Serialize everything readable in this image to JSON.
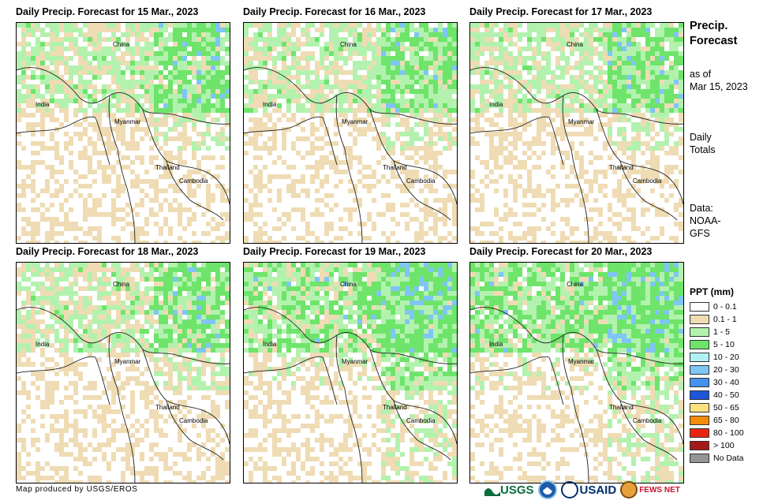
{
  "panels": [
    {
      "title": "Daily Precip. Forecast for 15 Mar., 2023"
    },
    {
      "title": "Daily Precip. Forecast for 16 Mar., 2023"
    },
    {
      "title": "Daily Precip. Forecast for 17 Mar., 2023"
    },
    {
      "title": "Daily Precip. Forecast for 18 Mar., 2023"
    },
    {
      "title": "Daily Precip. Forecast for 19 Mar., 2023"
    },
    {
      "title": "Daily Precip. Forecast for 20 Mar., 2023"
    }
  ],
  "map_labels": {
    "china": "China",
    "india": "India",
    "myanmar": "Myanmar",
    "thailand": "Thailand",
    "cambodia": "Cambodia"
  },
  "sidebar": {
    "title_line1": "Precip.",
    "title_line2": "Forecast",
    "asof_line1": "as of",
    "asof_line2": "Mar 15, 2023",
    "totals_line1": "Daily",
    "totals_line2": "Totals",
    "data_line1": "Data:",
    "data_line2": "NOAA-",
    "data_line3": "GFS"
  },
  "legend": {
    "title": "PPT (mm)",
    "items": [
      {
        "label": "0 - 0.1",
        "color": "#ffffff"
      },
      {
        "label": "0.1 - 1",
        "color": "#efdcb4"
      },
      {
        "label": "1 - 5",
        "color": "#b3f2ae"
      },
      {
        "label": "5 - 10",
        "color": "#6ee46b"
      },
      {
        "label": "10 - 20",
        "color": "#b2f0f8"
      },
      {
        "label": "20 - 30",
        "color": "#7fc5f5"
      },
      {
        "label": "30 - 40",
        "color": "#4592ec"
      },
      {
        "label": "40 - 50",
        "color": "#1d55d8"
      },
      {
        "label": "50 - 65",
        "color": "#fbe27f"
      },
      {
        "label": "65 - 80",
        "color": "#f28c0a"
      },
      {
        "label": "80 - 100",
        "color": "#e8260e"
      },
      {
        "label": "> 100",
        "color": "#a4191a"
      },
      {
        "label": "No Data",
        "color": "#959595"
      }
    ]
  },
  "credit": "Map produced by USGS/EROS",
  "logos": {
    "usgs": "USGS",
    "usaid": "USAID",
    "fews": "FEWS NET"
  }
}
